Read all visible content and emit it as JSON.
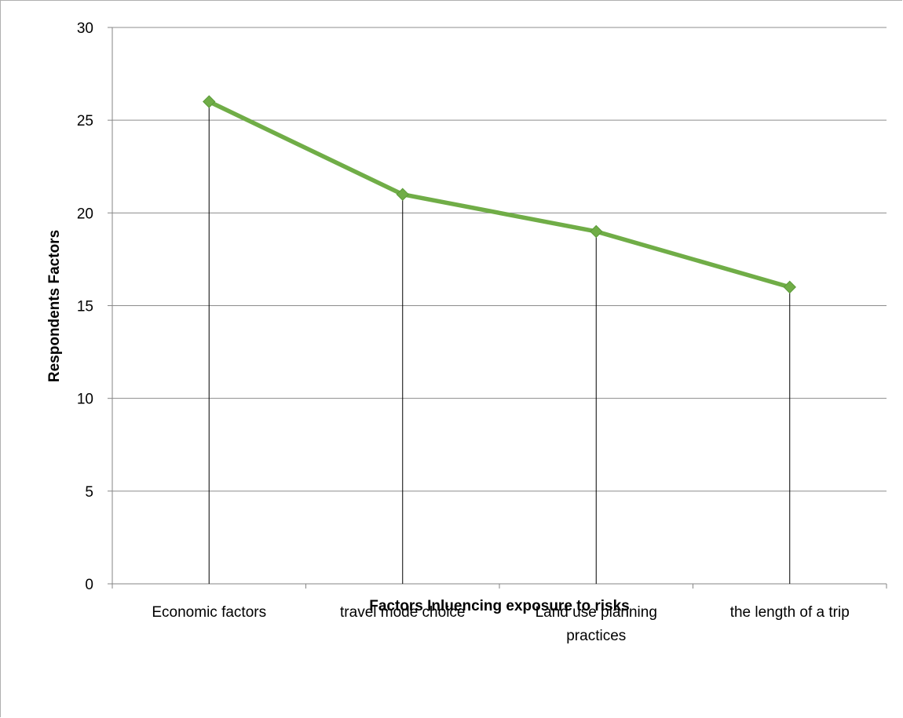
{
  "chart_data": {
    "type": "line",
    "title": "",
    "xlabel": "Factors Inluencing exposure to risks",
    "ylabel": "Respondents Factors",
    "categories": [
      [
        "Economic factors"
      ],
      [
        "travel mode choice"
      ],
      [
        "Land use planning",
        "practices"
      ],
      [
        "the length of a trip"
      ]
    ],
    "series": [
      {
        "values": [
          26,
          21,
          19,
          16
        ]
      }
    ],
    "ylim": [
      0,
      30
    ],
    "yticks": [
      0,
      5,
      10,
      15,
      20,
      25,
      30
    ],
    "grid": true,
    "drop_lines": true,
    "marker": "diamond",
    "colors": {
      "line": "#70ad47",
      "marker": "#70ad47",
      "grid": "#8c8c8c",
      "drop": "#000000"
    }
  }
}
